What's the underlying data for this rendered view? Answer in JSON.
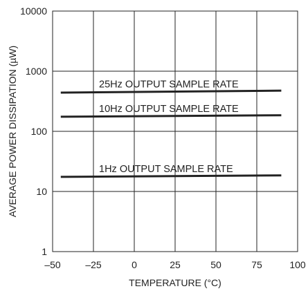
{
  "chart_data": {
    "type": "line",
    "title": "",
    "xlabel": "TEMPERATURE (°C)",
    "ylabel": "AVERAGE POWER DISSIPATION (µW)",
    "xlim": [
      -50,
      100
    ],
    "ylim": [
      1,
      10000
    ],
    "yscale": "log",
    "grid": true,
    "x_ticks": [
      -50,
      -25,
      0,
      25,
      50,
      75,
      100
    ],
    "x_tick_labels": [
      "–50",
      "–25",
      "0",
      "25",
      "50",
      "75",
      "100"
    ],
    "y_ticks": [
      1,
      10,
      100,
      1000,
      10000
    ],
    "y_tick_labels": [
      "1",
      "10",
      "100",
      "1000",
      "10000"
    ],
    "series": [
      {
        "name": "25Hz OUTPUT SAMPLE RATE",
        "x": [
          -45,
          90
        ],
        "y": [
          440,
          475
        ]
      },
      {
        "name": "10Hz OUTPUT SAMPLE RATE",
        "x": [
          -45,
          90
        ],
        "y": [
          175,
          185
        ]
      },
      {
        "name": "1Hz OUTPUT SAMPLE RATE",
        "x": [
          -45,
          90
        ],
        "y": [
          17.5,
          18.5
        ]
      }
    ],
    "colors": {
      "line": "#222222",
      "background": "#ffffff"
    }
  }
}
